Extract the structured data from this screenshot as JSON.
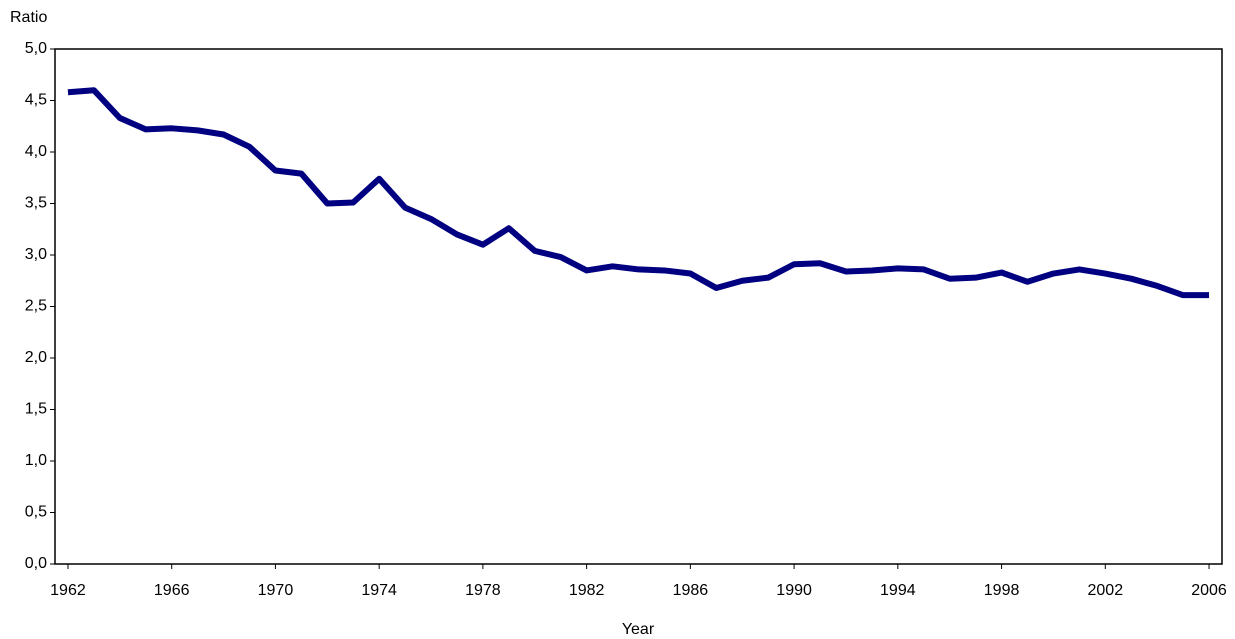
{
  "chart_data": {
    "type": "line",
    "y_label": "Ratio",
    "x_label": "Year",
    "x": [
      1962,
      1963,
      1964,
      1965,
      1966,
      1967,
      1968,
      1969,
      1970,
      1971,
      1972,
      1973,
      1974,
      1975,
      1976,
      1977,
      1978,
      1979,
      1980,
      1981,
      1982,
      1983,
      1984,
      1985,
      1986,
      1987,
      1988,
      1989,
      1990,
      1991,
      1992,
      1993,
      1994,
      1995,
      1996,
      1997,
      1998,
      1999,
      2000,
      2001,
      2002,
      2003,
      2004,
      2005,
      2006
    ],
    "values": [
      4.58,
      4.6,
      4.33,
      4.22,
      4.23,
      4.21,
      4.17,
      4.05,
      3.82,
      3.79,
      3.5,
      3.51,
      3.74,
      3.46,
      3.35,
      3.2,
      3.1,
      3.26,
      3.04,
      2.98,
      2.85,
      2.89,
      2.86,
      2.85,
      2.82,
      2.68,
      2.75,
      2.78,
      2.91,
      2.92,
      2.84,
      2.85,
      2.87,
      2.86,
      2.77,
      2.78,
      2.83,
      2.74,
      2.82,
      2.86,
      2.82,
      2.77,
      2.7,
      2.61,
      2.61
    ],
    "color": "#000080",
    "xlim": [
      1961.5,
      2006.5
    ],
    "xticks": [
      1962,
      1966,
      1970,
      1974,
      1978,
      1982,
      1986,
      1990,
      1994,
      1998,
      2002,
      2006
    ],
    "ylim": [
      0,
      5
    ],
    "yticks": [
      {
        "value": 0,
        "label": "0,0"
      },
      {
        "value": 0.5,
        "label": "0,5"
      },
      {
        "value": 1,
        "label": "1,0"
      },
      {
        "value": 1.5,
        "label": "1,5"
      },
      {
        "value": 2,
        "label": "2,0"
      },
      {
        "value": 2.5,
        "label": "2,5"
      },
      {
        "value": 3,
        "label": "3,0"
      },
      {
        "value": 3.5,
        "label": "3,5"
      },
      {
        "value": 4,
        "label": "4,0"
      },
      {
        "value": 4.5,
        "label": "4,5"
      },
      {
        "value": 5,
        "label": "5,0"
      }
    ],
    "grid": false
  }
}
